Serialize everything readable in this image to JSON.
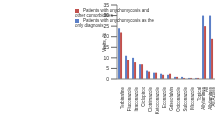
{
  "chart_data": {
    "type": "bar",
    "y_label": "Visits, %",
    "categories": [
      "Terbinafine",
      "Fluconazole",
      "Itraconazole",
      "Ciclopirox",
      "Clotrimazole",
      "Ketoconazole",
      "Econazole",
      "Griseofulvin",
      "Oxiconazole",
      "Sulconazole",
      "Miconazole",
      "Topical Allylamines",
      "All Allylamines",
      "All Azoles"
    ],
    "series": [
      {
        "name": "Patients with onychomycosis as the only diagnosis",
        "color": "#5b7fc7",
        "values": [
          24,
          11,
          10,
          7,
          4,
          3,
          2.5,
          2,
          1,
          1,
          0.5,
          0.5,
          30,
          30
        ]
      },
      {
        "name": "Patients with onychomycosis and other comorbidities",
        "color": "#c0504d",
        "values": [
          22,
          9,
          8,
          7,
          3.5,
          3,
          2,
          2.5,
          1,
          0.5,
          0.5,
          0.5,
          25,
          19
        ]
      }
    ],
    "ylim": [
      0,
      35
    ],
    "yticks": [
      0,
      5,
      10,
      15,
      20,
      25,
      30,
      35
    ],
    "grid": false,
    "legend": "upper center"
  }
}
